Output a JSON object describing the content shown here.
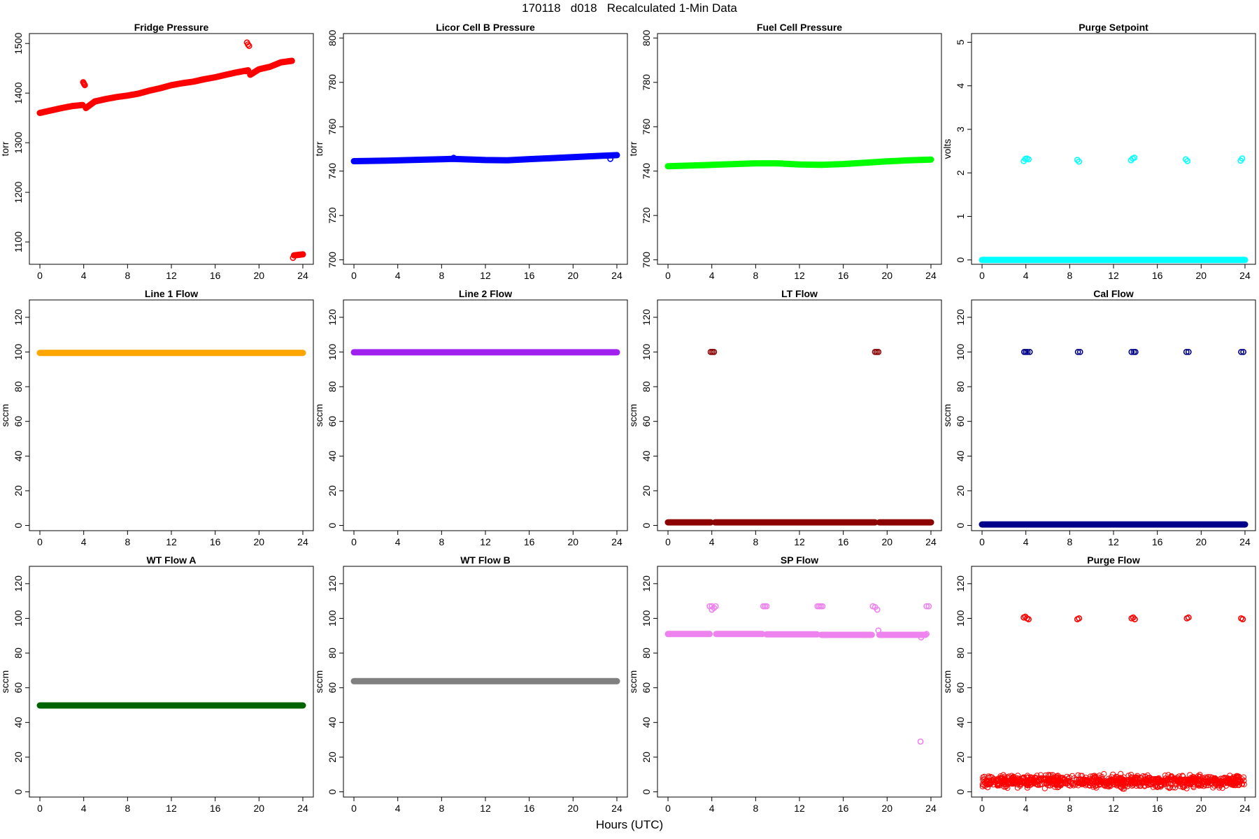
{
  "figure": {
    "title": "170118   d018   Recalculated 1-Min Data",
    "xlabel": "Hours (UTC)"
  },
  "chart_data": [
    {
      "type": "scatter",
      "title": "Fridge Pressure",
      "ylabel": "torr",
      "color": "#ff0000",
      "xlim": [
        0,
        24
      ],
      "xticks": [
        0,
        4,
        8,
        12,
        16,
        20,
        24
      ],
      "ylim": [
        1055,
        1520
      ],
      "yticks": [
        1100,
        1200,
        1300,
        1400,
        1500
      ],
      "segments": [
        {
          "x": [
            0,
            1,
            2,
            3,
            3.9
          ],
          "y": [
            1360,
            1365,
            1370,
            1374,
            1376
          ]
        },
        {
          "x": [
            4.2,
            5,
            6,
            7,
            8,
            9,
            10,
            11,
            12,
            13,
            14,
            15,
            16,
            17,
            18,
            19
          ],
          "y": [
            1370,
            1383,
            1388,
            1392,
            1395,
            1399,
            1405,
            1410,
            1416,
            1420,
            1423,
            1428,
            1432,
            1437,
            1442,
            1446
          ]
        },
        {
          "x": [
            19.2,
            20,
            21,
            22,
            23
          ],
          "y": [
            1437,
            1448,
            1453,
            1462,
            1465
          ]
        },
        {
          "x": [
            23.2,
            23.6,
            24
          ],
          "y": [
            1073,
            1074,
            1075
          ]
        }
      ],
      "points": [
        {
          "x": 3.95,
          "y": 1422
        },
        {
          "x": 4.0,
          "y": 1420
        },
        {
          "x": 4.05,
          "y": 1418
        },
        {
          "x": 4.1,
          "y": 1416
        },
        {
          "x": 18.9,
          "y": 1502
        },
        {
          "x": 19.0,
          "y": 1498
        },
        {
          "x": 19.1,
          "y": 1495
        },
        {
          "x": 23.1,
          "y": 1068
        },
        {
          "x": 18.8,
          "y": 1444
        }
      ]
    },
    {
      "type": "scatter",
      "title": "Licor Cell B Pressure",
      "ylabel": "torr",
      "color": "#0000ff",
      "xlim": [
        0,
        24
      ],
      "xticks": [
        0,
        4,
        8,
        12,
        16,
        20,
        24
      ],
      "ylim": [
        698,
        802
      ],
      "yticks": [
        700,
        720,
        740,
        760,
        780,
        800
      ],
      "segments": [
        {
          "x": [
            0,
            3,
            6,
            9,
            12,
            14,
            16,
            18,
            20,
            22,
            24
          ],
          "y": [
            744.5,
            744.7,
            745.1,
            745.5,
            745.0,
            744.9,
            745.4,
            745.8,
            746.3,
            746.8,
            747.2
          ]
        }
      ],
      "points": [
        {
          "x": 9.1,
          "y": 746.0
        },
        {
          "x": 23.4,
          "y": 745.5
        }
      ]
    },
    {
      "type": "scatter",
      "title": "Fuel Cell Pressure",
      "ylabel": "torr",
      "color": "#00ff00",
      "xlim": [
        0,
        24
      ],
      "xticks": [
        0,
        4,
        8,
        12,
        16,
        20,
        24
      ],
      "ylim": [
        698,
        802
      ],
      "yticks": [
        700,
        720,
        740,
        760,
        780,
        800
      ],
      "segments": [
        {
          "x": [
            0,
            4,
            8,
            10,
            12,
            14,
            16,
            18,
            20,
            22,
            24
          ],
          "y": [
            742.2,
            742.8,
            743.5,
            743.5,
            743.0,
            742.8,
            743.2,
            743.8,
            744.4,
            744.9,
            745.2
          ]
        }
      ],
      "points": []
    },
    {
      "type": "scatter",
      "title": "Purge Setpoint",
      "ylabel": "volts",
      "color": "#00ffff",
      "xlim": [
        0,
        24
      ],
      "xticks": [
        0,
        4,
        8,
        12,
        16,
        20,
        24
      ],
      "ylim": [
        -0.1,
        5.2
      ],
      "yticks": [
        0,
        1,
        2,
        3,
        4,
        5
      ],
      "segments": [
        {
          "x": [
            0,
            24
          ],
          "y": [
            0,
            0
          ]
        }
      ],
      "points": [
        {
          "x": 3.8,
          "y": 2.27
        },
        {
          "x": 3.95,
          "y": 2.32
        },
        {
          "x": 4.1,
          "y": 2.33
        },
        {
          "x": 4.25,
          "y": 2.31
        },
        {
          "x": 8.7,
          "y": 2.3
        },
        {
          "x": 8.85,
          "y": 2.26
        },
        {
          "x": 13.6,
          "y": 2.29
        },
        {
          "x": 13.75,
          "y": 2.33
        },
        {
          "x": 13.9,
          "y": 2.35
        },
        {
          "x": 18.6,
          "y": 2.31
        },
        {
          "x": 18.75,
          "y": 2.27
        },
        {
          "x": 23.6,
          "y": 2.28
        },
        {
          "x": 23.75,
          "y": 2.33
        }
      ]
    },
    {
      "type": "scatter",
      "title": "Line 1 Flow",
      "ylabel": "sccm",
      "color": "#ffa500",
      "xlim": [
        0,
        24
      ],
      "xticks": [
        0,
        4,
        8,
        12,
        16,
        20,
        24
      ],
      "ylim": [
        -3,
        130
      ],
      "yticks": [
        0,
        20,
        40,
        60,
        80,
        100,
        120
      ],
      "segments": [
        {
          "x": [
            0,
            24
          ],
          "y": [
            99.5,
            99.5
          ]
        }
      ],
      "points": []
    },
    {
      "type": "scatter",
      "title": "Line 2 Flow",
      "ylabel": "sccm",
      "color": "#a020f0",
      "xlim": [
        0,
        24
      ],
      "xticks": [
        0,
        4,
        8,
        12,
        16,
        20,
        24
      ],
      "ylim": [
        -3,
        130
      ],
      "yticks": [
        0,
        20,
        40,
        60,
        80,
        100,
        120
      ],
      "segments": [
        {
          "x": [
            0,
            24
          ],
          "y": [
            99.8,
            99.8
          ]
        }
      ],
      "points": []
    },
    {
      "type": "scatter",
      "title": "LT Flow",
      "ylabel": "sccm",
      "color": "#8b0000",
      "xlim": [
        0,
        24
      ],
      "xticks": [
        0,
        4,
        8,
        12,
        16,
        20,
        24
      ],
      "ylim": [
        -3,
        130
      ],
      "yticks": [
        0,
        20,
        40,
        60,
        80,
        100,
        120
      ],
      "segments": [
        {
          "x": [
            0,
            3.9
          ],
          "y": [
            1.8,
            1.8
          ]
        },
        {
          "x": 4.3,
          "y": 1.8,
          "x2": 18.9
        },
        {
          "x": [
            19.3,
            24
          ],
          "y": [
            1.8,
            1.8
          ]
        }
      ],
      "points": [
        {
          "x": 3.9,
          "y": 100
        },
        {
          "x": 4.05,
          "y": 100
        },
        {
          "x": 4.2,
          "y": 100
        },
        {
          "x": 18.9,
          "y": 100
        },
        {
          "x": 19.05,
          "y": 100
        },
        {
          "x": 19.2,
          "y": 100
        }
      ]
    },
    {
      "type": "scatter",
      "title": "Cal Flow",
      "ylabel": "sccm",
      "color": "#00008b",
      "xlim": [
        0,
        24
      ],
      "xticks": [
        0,
        4,
        8,
        12,
        16,
        20,
        24
      ],
      "ylim": [
        -3,
        130
      ],
      "yticks": [
        0,
        20,
        40,
        60,
        80,
        100,
        120
      ],
      "segments": [
        {
          "x": [
            0,
            24
          ],
          "y": [
            0.6,
            0.6
          ]
        }
      ],
      "points": [
        {
          "x": 3.85,
          "y": 100
        },
        {
          "x": 4.0,
          "y": 100
        },
        {
          "x": 4.15,
          "y": 100
        },
        {
          "x": 4.35,
          "y": 100
        },
        {
          "x": 8.75,
          "y": 100
        },
        {
          "x": 8.95,
          "y": 100
        },
        {
          "x": 13.65,
          "y": 100
        },
        {
          "x": 13.85,
          "y": 100
        },
        {
          "x": 14.0,
          "y": 100
        },
        {
          "x": 18.65,
          "y": 100
        },
        {
          "x": 18.85,
          "y": 100
        },
        {
          "x": 23.65,
          "y": 100
        },
        {
          "x": 23.85,
          "y": 100
        }
      ]
    },
    {
      "type": "scatter",
      "title": "WT Flow A",
      "ylabel": "sccm",
      "color": "#006400",
      "xlim": [
        0,
        24
      ],
      "xticks": [
        0,
        4,
        8,
        12,
        16,
        20,
        24
      ],
      "ylim": [
        -3,
        130
      ],
      "yticks": [
        0,
        20,
        40,
        60,
        80,
        100,
        120
      ],
      "segments": [
        {
          "x": [
            0,
            24
          ],
          "y": [
            49.8,
            49.8
          ]
        }
      ],
      "points": []
    },
    {
      "type": "scatter",
      "title": "WT Flow B",
      "ylabel": "sccm",
      "color": "#808080",
      "xlim": [
        0,
        24
      ],
      "xticks": [
        0,
        4,
        8,
        12,
        16,
        20,
        24
      ],
      "ylim": [
        -3,
        130
      ],
      "yticks": [
        0,
        20,
        40,
        60,
        80,
        100,
        120
      ],
      "segments": [
        {
          "x": [
            0,
            24
          ],
          "y": [
            63.8,
            63.8
          ]
        }
      ],
      "points": []
    },
    {
      "type": "scatter",
      "title": "SP Flow",
      "ylabel": "sccm",
      "color": "#ee82ee",
      "xlim": [
        0,
        24
      ],
      "xticks": [
        0,
        4,
        8,
        12,
        16,
        20,
        24
      ],
      "ylim": [
        -3,
        130
      ],
      "yticks": [
        0,
        20,
        40,
        60,
        80,
        100,
        120
      ],
      "segments": [
        {
          "x": [
            0,
            3.8
          ],
          "y": [
            91,
            91
          ]
        },
        {
          "x": [
            4.4,
            8.6
          ],
          "y": [
            91,
            91
          ]
        },
        {
          "x": [
            9.0,
            13.6
          ],
          "y": [
            90.8,
            90.8
          ]
        },
        {
          "x": [
            14.0,
            18.6
          ],
          "y": [
            90.5,
            90.5
          ]
        },
        {
          "x": [
            19.3,
            23.5
          ],
          "y": [
            90.5,
            90.5
          ]
        }
      ],
      "points": [
        {
          "x": 3.8,
          "y": 107
        },
        {
          "x": 4.0,
          "y": 107
        },
        {
          "x": 4.2,
          "y": 106
        },
        {
          "x": 4.35,
          "y": 107
        },
        {
          "x": 4.0,
          "y": 105
        },
        {
          "x": 8.7,
          "y": 107
        },
        {
          "x": 8.85,
          "y": 107
        },
        {
          "x": 9.0,
          "y": 107
        },
        {
          "x": 13.65,
          "y": 107
        },
        {
          "x": 13.8,
          "y": 107
        },
        {
          "x": 13.95,
          "y": 107
        },
        {
          "x": 14.1,
          "y": 107
        },
        {
          "x": 18.7,
          "y": 107
        },
        {
          "x": 18.9,
          "y": 106.5
        },
        {
          "x": 19.1,
          "y": 105
        },
        {
          "x": 23.6,
          "y": 107
        },
        {
          "x": 23.8,
          "y": 107
        },
        {
          "x": 19.2,
          "y": 93
        },
        {
          "x": 23.1,
          "y": 89
        },
        {
          "x": 23.6,
          "y": 91
        },
        {
          "x": 23.05,
          "y": 29
        }
      ]
    },
    {
      "type": "scatter",
      "title": "Purge Flow",
      "ylabel": "sccm",
      "color": "#ff0000",
      "xlim": [
        0,
        24
      ],
      "xticks": [
        0,
        4,
        8,
        12,
        16,
        20,
        24
      ],
      "ylim": [
        -3,
        130
      ],
      "yticks": [
        0,
        20,
        40,
        60,
        80,
        100,
        120
      ],
      "noise_band": {
        "y_min": 1,
        "y_max": 11,
        "center": 5.5
      },
      "segments": [],
      "points": [
        {
          "x": 3.8,
          "y": 100.5
        },
        {
          "x": 3.95,
          "y": 101
        },
        {
          "x": 4.1,
          "y": 100
        },
        {
          "x": 4.25,
          "y": 99.5
        },
        {
          "x": 8.7,
          "y": 99.5
        },
        {
          "x": 8.85,
          "y": 100
        },
        {
          "x": 13.65,
          "y": 100
        },
        {
          "x": 13.8,
          "y": 100.5
        },
        {
          "x": 13.95,
          "y": 99.5
        },
        {
          "x": 18.7,
          "y": 100
        },
        {
          "x": 18.85,
          "y": 100.5
        },
        {
          "x": 23.65,
          "y": 100
        },
        {
          "x": 23.8,
          "y": 99.5
        }
      ]
    }
  ]
}
